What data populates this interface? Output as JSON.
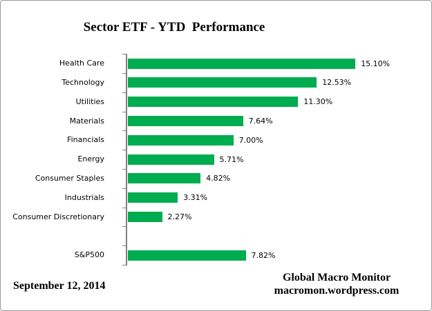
{
  "window": {
    "background": "#ffffff",
    "border_color": "#999999"
  },
  "title": "Sector ETF - YTD  Performance",
  "footer": {
    "date": "September 12, 2014",
    "brand_line1": "Global Macro Monitor",
    "brand_line2": "macromon.wordpress.com"
  },
  "chart_data": {
    "type": "bar",
    "orientation": "horizontal",
    "title": "Sector ETF - YTD  Performance",
    "categories": [
      "Health Care",
      "Technology",
      "Utilities",
      "Materials",
      "Financials",
      "Energy",
      "Consumer Staples",
      "Industrials",
      "Consumer Discretionary",
      "",
      "S&P500"
    ],
    "values": [
      15.1,
      12.53,
      11.3,
      7.64,
      7.0,
      5.71,
      4.82,
      3.31,
      2.27,
      null,
      7.82
    ],
    "value_labels": [
      "15.10%",
      "12.53%",
      "11.30%",
      "7.64%",
      "7.00%",
      "5.71%",
      "4.82%",
      "3.31%",
      "2.27%",
      null,
      "7.82%"
    ],
    "xlabel": "",
    "ylabel": "",
    "xlim": [
      0,
      18.8
    ],
    "grid": false,
    "legend": false,
    "data_labels": true,
    "bar_color": "#00AC50",
    "axis_color": "#808080",
    "label_color": "#000000"
  }
}
